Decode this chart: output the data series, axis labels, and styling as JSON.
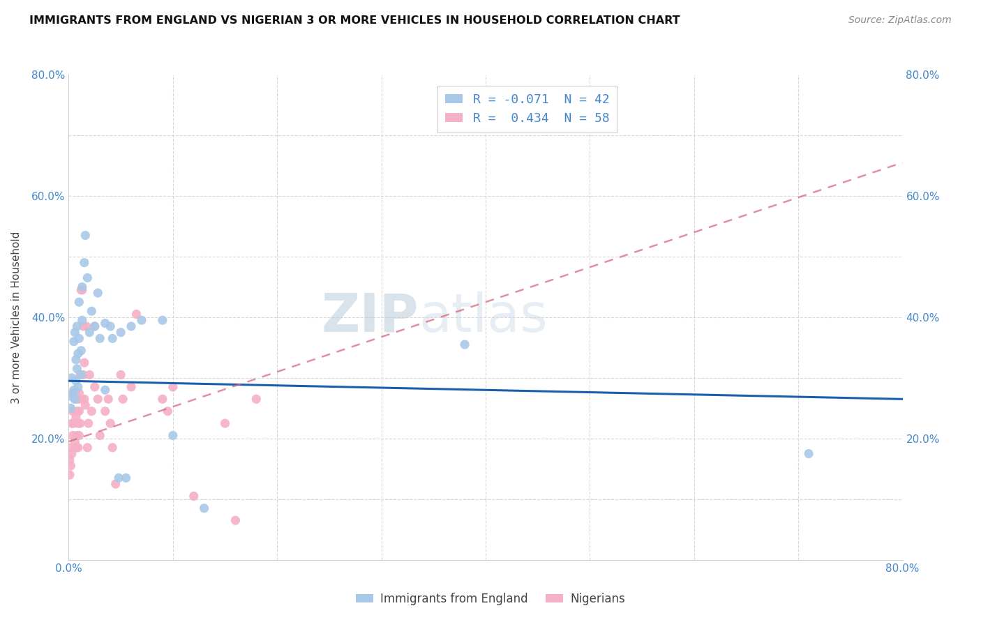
{
  "title": "IMMIGRANTS FROM ENGLAND VS NIGERIAN 3 OR MORE VEHICLES IN HOUSEHOLD CORRELATION CHART",
  "source": "Source: ZipAtlas.com",
  "ylabel": "3 or more Vehicles in Household",
  "xlim": [
    0.0,
    0.8
  ],
  "ylim": [
    0.0,
    0.8
  ],
  "legend_entries": [
    {
      "label": "R = -0.071  N = 42",
      "color": "#aec6e8"
    },
    {
      "label": "R =  0.434  N = 58",
      "color": "#f4b8c8"
    }
  ],
  "england_scatter_color": "#a8c8e8",
  "nigerian_scatter_color": "#f4b0c4",
  "england_line_color": "#1a5fad",
  "nigerian_line_color": "#d4607a",
  "england_line": [
    [
      0.0,
      0.295
    ],
    [
      0.8,
      0.265
    ]
  ],
  "nigerian_line": [
    [
      0.0,
      0.195
    ],
    [
      0.8,
      0.655
    ]
  ],
  "watermark_text": "ZIPatlas",
  "background_color": "#ffffff",
  "grid_color": "#d8d8d8",
  "england_points": [
    [
      0.001,
      0.27
    ],
    [
      0.002,
      0.25
    ],
    [
      0.003,
      0.3
    ],
    [
      0.004,
      0.275
    ],
    [
      0.005,
      0.28
    ],
    [
      0.005,
      0.36
    ],
    [
      0.006,
      0.265
    ],
    [
      0.006,
      0.375
    ],
    [
      0.007,
      0.295
    ],
    [
      0.007,
      0.33
    ],
    [
      0.008,
      0.315
    ],
    [
      0.008,
      0.385
    ],
    [
      0.009,
      0.285
    ],
    [
      0.009,
      0.34
    ],
    [
      0.01,
      0.365
    ],
    [
      0.01,
      0.425
    ],
    [
      0.012,
      0.345
    ],
    [
      0.012,
      0.305
    ],
    [
      0.013,
      0.45
    ],
    [
      0.013,
      0.395
    ],
    [
      0.015,
      0.49
    ],
    [
      0.016,
      0.535
    ],
    [
      0.018,
      0.465
    ],
    [
      0.02,
      0.375
    ],
    [
      0.022,
      0.41
    ],
    [
      0.025,
      0.385
    ],
    [
      0.028,
      0.44
    ],
    [
      0.03,
      0.365
    ],
    [
      0.035,
      0.39
    ],
    [
      0.035,
      0.28
    ],
    [
      0.04,
      0.385
    ],
    [
      0.042,
      0.365
    ],
    [
      0.048,
      0.135
    ],
    [
      0.05,
      0.375
    ],
    [
      0.055,
      0.135
    ],
    [
      0.06,
      0.385
    ],
    [
      0.07,
      0.395
    ],
    [
      0.09,
      0.395
    ],
    [
      0.1,
      0.205
    ],
    [
      0.13,
      0.085
    ],
    [
      0.38,
      0.355
    ],
    [
      0.71,
      0.175
    ]
  ],
  "nigerian_points": [
    [
      0.001,
      0.165
    ],
    [
      0.001,
      0.14
    ],
    [
      0.002,
      0.185
    ],
    [
      0.002,
      0.155
    ],
    [
      0.003,
      0.225
    ],
    [
      0.003,
      0.175
    ],
    [
      0.004,
      0.205
    ],
    [
      0.004,
      0.245
    ],
    [
      0.005,
      0.275
    ],
    [
      0.005,
      0.225
    ],
    [
      0.006,
      0.195
    ],
    [
      0.006,
      0.265
    ],
    [
      0.007,
      0.185
    ],
    [
      0.007,
      0.235
    ],
    [
      0.007,
      0.275
    ],
    [
      0.008,
      0.205
    ],
    [
      0.008,
      0.245
    ],
    [
      0.009,
      0.185
    ],
    [
      0.009,
      0.225
    ],
    [
      0.009,
      0.265
    ],
    [
      0.01,
      0.205
    ],
    [
      0.01,
      0.245
    ],
    [
      0.01,
      0.275
    ],
    [
      0.011,
      0.225
    ],
    [
      0.011,
      0.305
    ],
    [
      0.012,
      0.265
    ],
    [
      0.012,
      0.445
    ],
    [
      0.013,
      0.445
    ],
    [
      0.014,
      0.305
    ],
    [
      0.014,
      0.385
    ],
    [
      0.015,
      0.265
    ],
    [
      0.015,
      0.325
    ],
    [
      0.016,
      0.255
    ],
    [
      0.017,
      0.385
    ],
    [
      0.018,
      0.185
    ],
    [
      0.019,
      0.225
    ],
    [
      0.02,
      0.305
    ],
    [
      0.022,
      0.245
    ],
    [
      0.025,
      0.285
    ],
    [
      0.025,
      0.385
    ],
    [
      0.028,
      0.265
    ],
    [
      0.03,
      0.205
    ],
    [
      0.035,
      0.245
    ],
    [
      0.038,
      0.265
    ],
    [
      0.04,
      0.225
    ],
    [
      0.042,
      0.185
    ],
    [
      0.045,
      0.125
    ],
    [
      0.05,
      0.305
    ],
    [
      0.052,
      0.265
    ],
    [
      0.06,
      0.285
    ],
    [
      0.065,
      0.405
    ],
    [
      0.09,
      0.265
    ],
    [
      0.095,
      0.245
    ],
    [
      0.1,
      0.285
    ],
    [
      0.12,
      0.105
    ],
    [
      0.15,
      0.225
    ],
    [
      0.16,
      0.065
    ],
    [
      0.18,
      0.265
    ]
  ]
}
